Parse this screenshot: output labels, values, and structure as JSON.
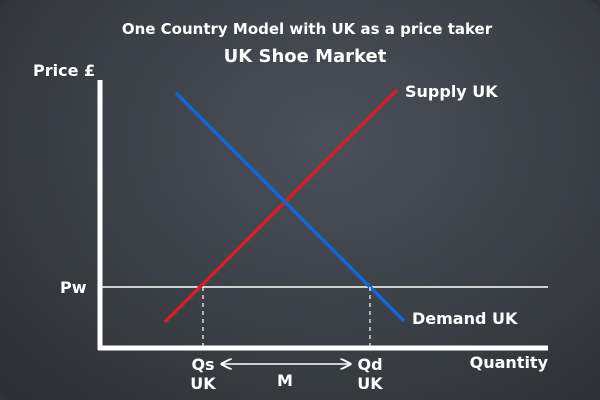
{
  "title": "One Country Model with UK as a price taker",
  "subtitle": "UK Shoe Market",
  "axes": {
    "y_label": "Price £",
    "x_label": "Quantity"
  },
  "world_price": {
    "label": "Pw"
  },
  "curves": {
    "supply": {
      "label": "Supply UK",
      "color": "#d0202a"
    },
    "demand": {
      "label": "Demand UK",
      "color": "#1565d8"
    }
  },
  "quantities": {
    "qs_label": "Qs",
    "qs_sub": "UK",
    "qd_label": "Qd",
    "qd_sub": "UK",
    "imports_label": "M"
  },
  "colors": {
    "axis": "#ffffff",
    "text": "#ffffff"
  }
}
